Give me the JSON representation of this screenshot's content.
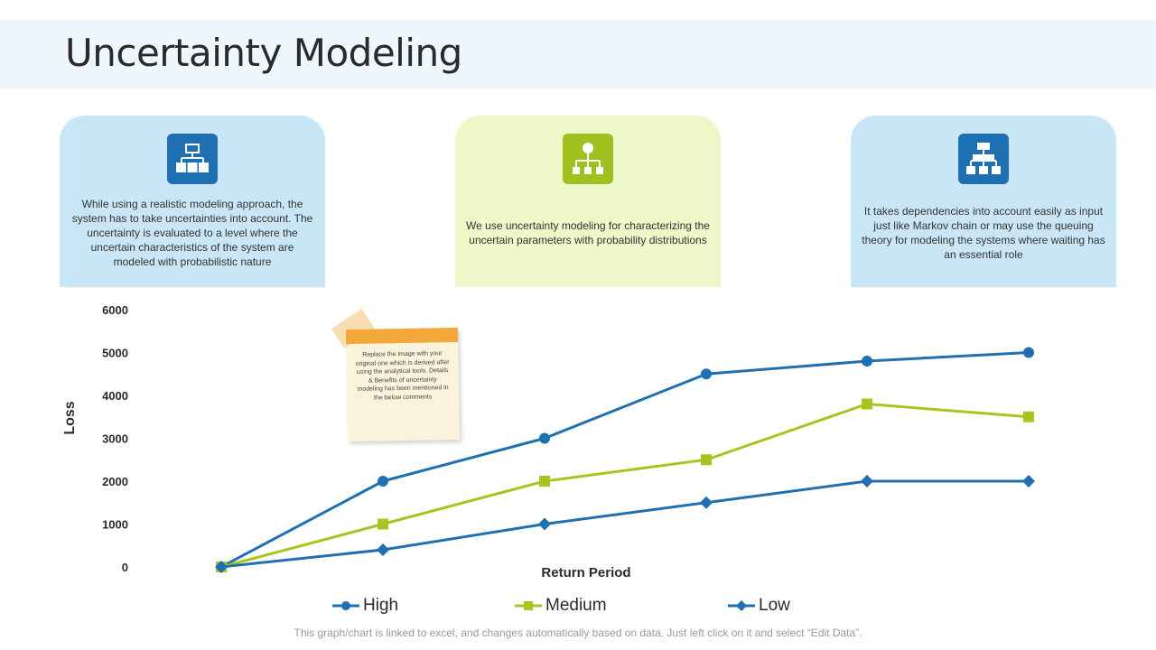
{
  "title": "Uncertainty Modeling",
  "cards": [
    {
      "icon": "hierarchy-blocks-icon",
      "text": "While using a realistic modeling approach, the system has to take uncertainties into account. The uncertainty is evaluated  to a level  where the uncertain characteristics of the system are modeled with probabilistic nature"
    },
    {
      "icon": "org-chart-icon",
      "text": "We use uncertainty modeling for characterizing the uncertain parameters with probability distributions"
    },
    {
      "icon": "flowchart-icon",
      "text": "It takes dependencies into account easily as input just like Markov chain or may use the queuing theory for modeling the systems where waiting has an essential role"
    }
  ],
  "note": {
    "text": "Replace the image with your original one which is derived after using the analytical tools. Details & Benefits of uncertainty modeling has been mentioned  in the below comments"
  },
  "footer": "This graph/chart is linked to excel, and changes automatically based on data. Just left click on it and select “Edit Data”.",
  "chart_data": {
    "type": "line",
    "xlabel": "Return Period",
    "ylabel": "Loss",
    "ylim": [
      0,
      6000
    ],
    "yticks": [
      0,
      1000,
      2000,
      3000,
      4000,
      5000,
      6000
    ],
    "x": [
      1,
      2,
      3,
      4,
      5,
      6
    ],
    "grid": false,
    "legend": "bottom",
    "series": [
      {
        "name": "High",
        "values": [
          0,
          2000,
          3000,
          4500,
          4800,
          5000
        ],
        "color": "#1f6fb3",
        "marker": "circle"
      },
      {
        "name": "Medium",
        "values": [
          0,
          1000,
          2000,
          2500,
          3800,
          3500
        ],
        "color": "#a7c520",
        "marker": "square"
      },
      {
        "name": "Low",
        "values": [
          0,
          400,
          1000,
          1500,
          2000,
          2000
        ],
        "color": "#1f6fb3",
        "marker": "diamond"
      }
    ]
  }
}
